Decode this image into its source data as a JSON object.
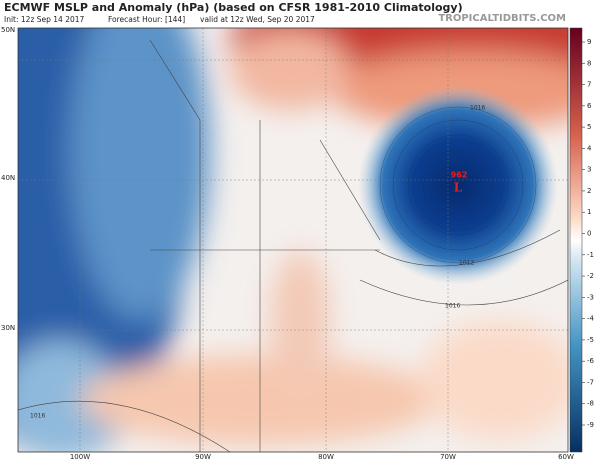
{
  "header": {
    "title": "ECMWF MSLP and Anomaly (hPa) (based on CFSR 1981-2010 Climatology)",
    "init": "Init: 12z Sep 14 2017",
    "forecast_hour": "Forecast Hour: [144]",
    "valid": "valid at 12z Wed, Sep 20 2017",
    "site": "TROPICALTIDBITS.COM"
  },
  "axes": {
    "lat_labels": [
      "50N",
      "40N",
      "30N"
    ],
    "lon_labels": [
      "100W",
      "90W",
      "80W",
      "70W",
      "60W"
    ]
  },
  "colorbar": {
    "ticks": [
      9,
      8,
      7,
      6,
      5,
      4,
      3,
      2,
      1,
      0,
      -1,
      -2,
      -3,
      -4,
      -5,
      -6,
      -7,
      -8,
      -9
    ]
  },
  "annotations": {
    "low_value": "962",
    "low_symbol": "L",
    "isobars": [
      "1016",
      "1012",
      "1016",
      "1016"
    ]
  }
}
